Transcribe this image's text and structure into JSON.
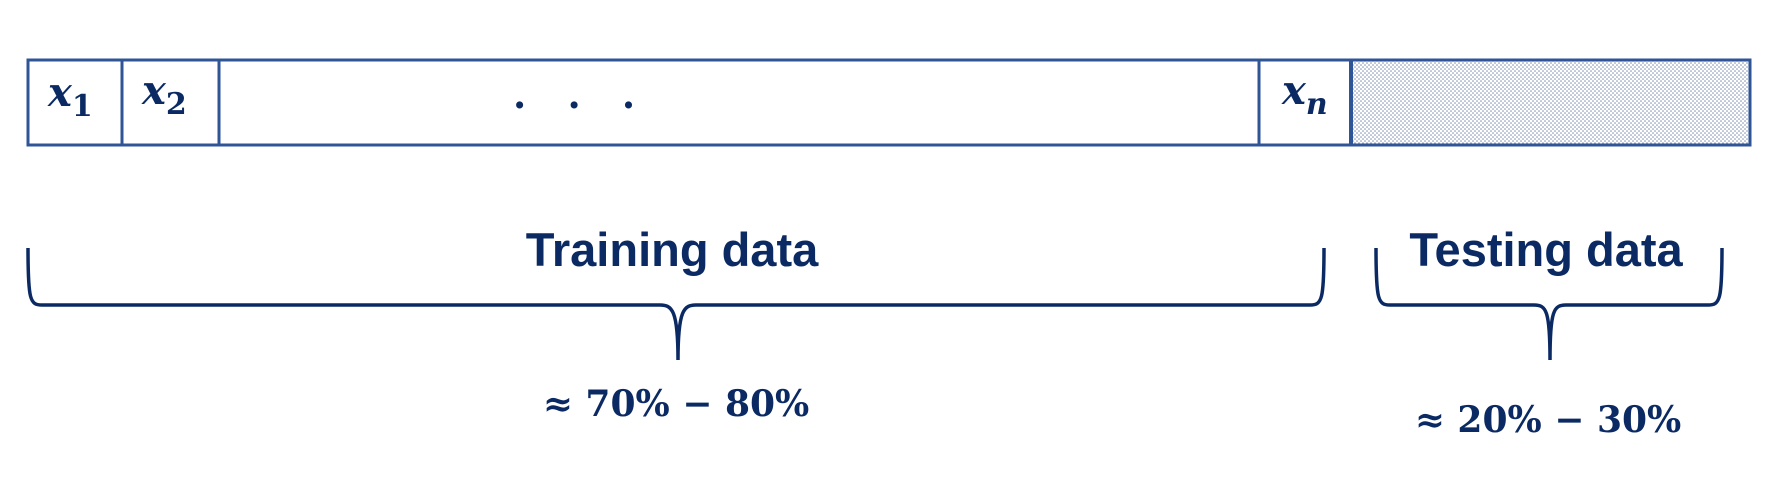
{
  "data_strip": {
    "cells": [
      {
        "var": "x",
        "sub": "1"
      },
      {
        "var": "x",
        "sub": "2"
      },
      {
        "var": "x",
        "sub": "n"
      }
    ],
    "ellipsis": ". . ."
  },
  "training": {
    "label": "Training data",
    "percent": "≈ 70% − 80%"
  },
  "testing": {
    "label": "Testing data",
    "percent": "≈ 20% − 30%"
  },
  "colors": {
    "border": "#2f5597",
    "text": "#0b2a63",
    "hatch_dot": "#7f8fae"
  }
}
